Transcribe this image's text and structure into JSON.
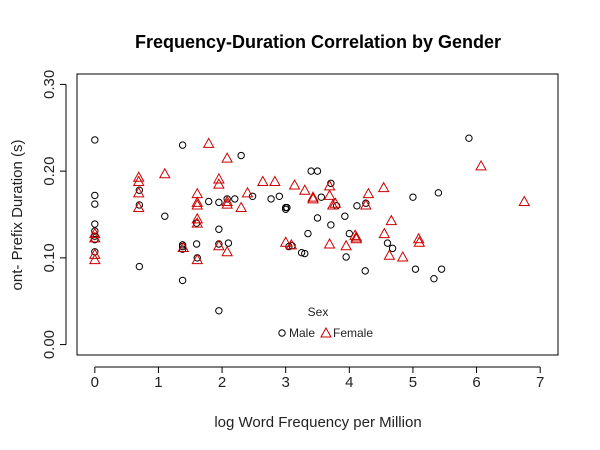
{
  "chart_data": {
    "type": "scatter",
    "title": "Frequency-Duration Correlation by Gender",
    "xlabel": "log Word Frequency per Million",
    "ylabel": "ont- Prefix Duration (s)",
    "xlim": [
      -0.28,
      7.28
    ],
    "ylim": [
      -0.012,
      0.312
    ],
    "xticks": [
      0,
      1,
      2,
      3,
      4,
      5,
      6,
      7
    ],
    "xtick_labels": [
      "0",
      "1",
      "2",
      "3",
      "4",
      "5",
      "6",
      "7"
    ],
    "yticks": [
      0.0,
      0.1,
      0.2,
      0.3
    ],
    "ytick_labels": [
      "0.00",
      "0.10",
      "0.20",
      "0.30"
    ],
    "grid": false,
    "legend": {
      "title": "Sex",
      "placement": "bottom-center"
    },
    "series": [
      {
        "name": "Male",
        "marker": "circle",
        "color": "#000000",
        "x": [
          0.0,
          0.0,
          0.0,
          0.0,
          0.0,
          0.0,
          0.0,
          0.0,
          0.7,
          0.7,
          0.7,
          1.1,
          1.38,
          1.38,
          1.38,
          1.38,
          1.38,
          1.6,
          1.6,
          1.61,
          1.79,
          1.95,
          1.95,
          1.95,
          1.95,
          2.08,
          2.1,
          2.2,
          2.3,
          2.48,
          2.77,
          2.9,
          3.0,
          3.0,
          3.02,
          3.05,
          3.1,
          3.25,
          3.3,
          3.35,
          3.4,
          3.5,
          3.5,
          3.56,
          3.71,
          3.71,
          3.8,
          3.93,
          3.95,
          4.0,
          4.12,
          4.25,
          4.26,
          4.6,
          4.68,
          5.0,
          5.04,
          5.33,
          5.4,
          5.45,
          5.88
        ],
        "y": [
          0.236,
          0.172,
          0.162,
          0.139,
          0.131,
          0.125,
          0.121,
          0.107,
          0.178,
          0.161,
          0.09,
          0.148,
          0.23,
          0.115,
          0.113,
          0.11,
          0.074,
          0.14,
          0.116,
          0.1,
          0.165,
          0.164,
          0.133,
          0.116,
          0.039,
          0.168,
          0.117,
          0.168,
          0.218,
          0.171,
          0.168,
          0.171,
          0.158,
          0.156,
          0.158,
          0.113,
          0.114,
          0.106,
          0.105,
          0.128,
          0.2,
          0.2,
          0.146,
          0.17,
          0.186,
          0.138,
          0.16,
          0.148,
          0.101,
          0.128,
          0.16,
          0.085,
          0.163,
          0.117,
          0.111,
          0.17,
          0.087,
          0.076,
          0.175,
          0.087,
          0.238
        ]
      },
      {
        "name": "Female",
        "marker": "triangle",
        "color": "#cc0000",
        "x": [
          0.0,
          0.0,
          0.0,
          0.0,
          0.69,
          0.69,
          0.69,
          0.69,
          1.1,
          1.39,
          1.61,
          1.61,
          1.61,
          1.61,
          1.61,
          1.61,
          1.79,
          1.95,
          1.95,
          1.95,
          2.08,
          2.08,
          2.08,
          2.08,
          2.3,
          2.4,
          2.64,
          2.83,
          3.0,
          3.09,
          3.14,
          3.3,
          3.43,
          3.43,
          3.69,
          3.69,
          3.69,
          3.74,
          3.78,
          3.95,
          4.09,
          4.11,
          4.11,
          4.26,
          4.3,
          4.54,
          4.55,
          4.63,
          4.66,
          4.84,
          5.09,
          5.1,
          6.07,
          6.75
        ],
        "y": [
          0.128,
          0.123,
          0.104,
          0.098,
          0.193,
          0.188,
          0.175,
          0.158,
          0.197,
          0.112,
          0.174,
          0.164,
          0.161,
          0.145,
          0.14,
          0.098,
          0.232,
          0.191,
          0.185,
          0.114,
          0.215,
          0.165,
          0.162,
          0.107,
          0.158,
          0.175,
          0.188,
          0.188,
          0.118,
          0.115,
          0.184,
          0.178,
          0.17,
          0.168,
          0.183,
          0.172,
          0.116,
          0.161,
          0.163,
          0.114,
          0.126,
          0.124,
          0.122,
          0.161,
          0.174,
          0.181,
          0.128,
          0.103,
          0.143,
          0.101,
          0.122,
          0.118,
          0.206,
          0.165
        ]
      }
    ]
  }
}
